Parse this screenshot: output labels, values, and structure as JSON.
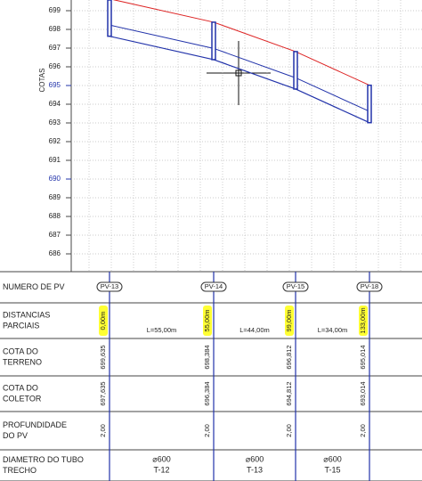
{
  "axis": {
    "title": "COTAS",
    "ticks": [
      699,
      698,
      697,
      696,
      695,
      694,
      693,
      692,
      691,
      690,
      689,
      688,
      687,
      686
    ]
  },
  "row_labels": [
    [
      "NUMERO DE PV"
    ],
    [
      "DISTANCIAS",
      "PARCIAIS"
    ],
    [
      "COTA DO",
      "TERRENO"
    ],
    [
      "COTA DO",
      "COLETOR"
    ],
    [
      "PROFUNDIDADE",
      "DO PV"
    ],
    [
      "DIAMETRO DO TUBO",
      "TRECHO"
    ]
  ],
  "stations": [
    {
      "name": "PV-13",
      "distance": "0,00m",
      "terrain": "699,635",
      "collector": "697,635",
      "depth": "2,00"
    },
    {
      "name": "PV-14",
      "distance": "55,00m",
      "terrain": "698,384",
      "collector": "696,384",
      "depth": "2,00"
    },
    {
      "name": "PV-15",
      "distance": "99,00m",
      "terrain": "696,812",
      "collector": "694,812",
      "depth": "2,00"
    },
    {
      "name": "PV-18",
      "distance": "133,00m",
      "terrain": "695,014",
      "collector": "693,014",
      "depth": "2,00"
    }
  ],
  "segments": [
    {
      "length": "L=55,00m",
      "diameter": "⌀600",
      "name": "T-12"
    },
    {
      "length": "L=44,00m",
      "diameter": "⌀600",
      "name": "T-13"
    },
    {
      "length": "L=34,00m",
      "diameter": "⌀600",
      "name": "T-15"
    }
  ]
}
